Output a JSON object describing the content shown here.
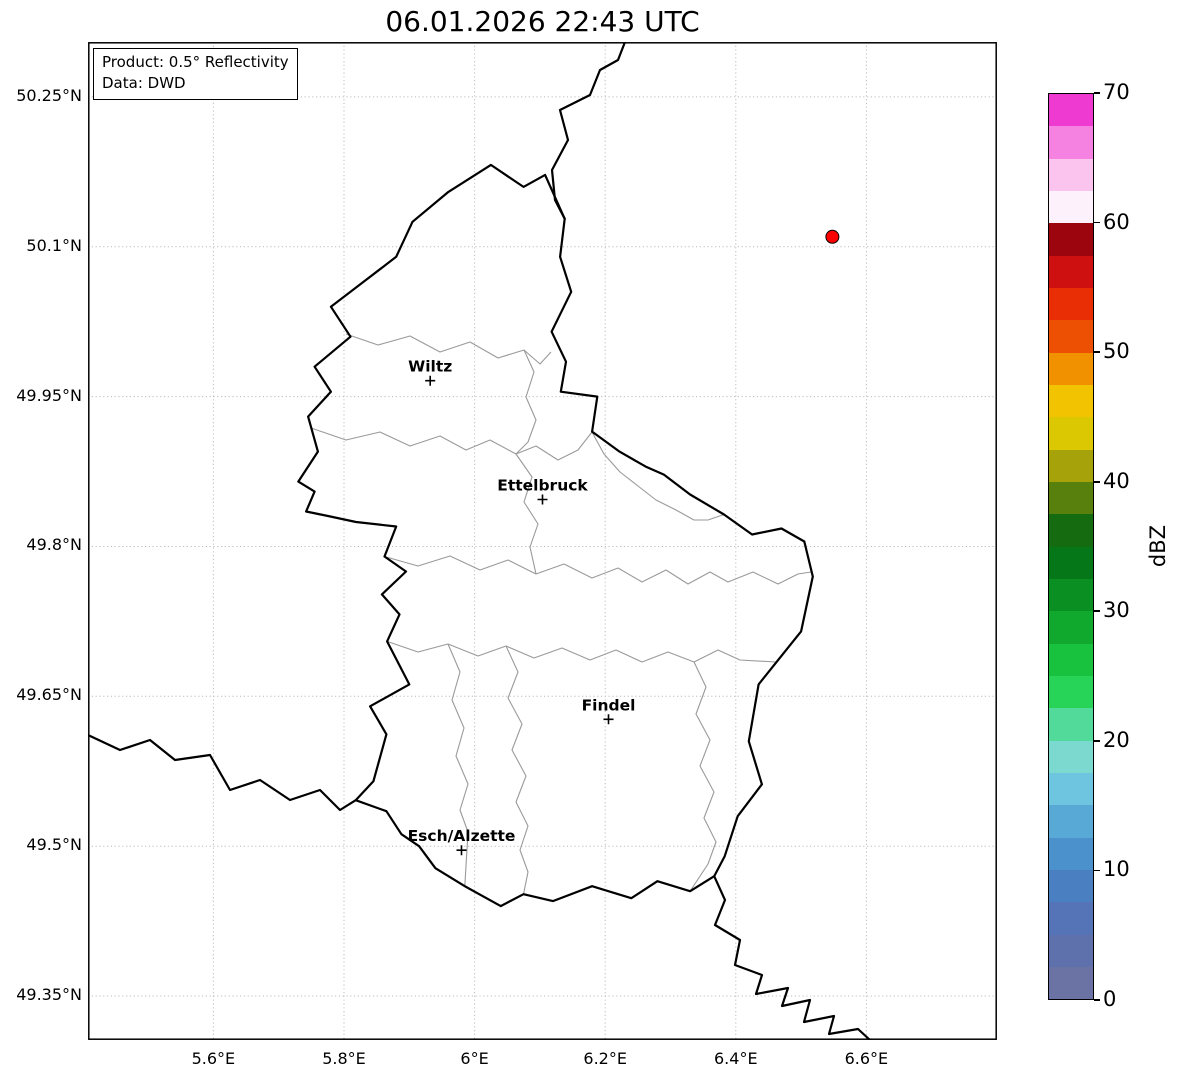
{
  "title": "06.01.2026 22:43 UTC",
  "info_box": {
    "line1": "Product: 0.5° Reflectivity",
    "line2": "Data: DWD"
  },
  "chart_data": {
    "type": "map",
    "title": "06.01.2026 22:43 UTC",
    "region": "Luxembourg and surrounding borders",
    "grid": true,
    "extent": {
      "lon_min": 5.408,
      "lon_max": 6.8,
      "lat_min": 49.306,
      "lat_max": 50.305
    },
    "lat_ticks": [
      {
        "value": 50.25,
        "label": "50.25°N"
      },
      {
        "value": 50.1,
        "label": "50.1°N"
      },
      {
        "value": 49.95,
        "label": "49.95°N"
      },
      {
        "value": 49.8,
        "label": "49.8°N"
      },
      {
        "value": 49.65,
        "label": "49.65°N"
      },
      {
        "value": 49.5,
        "label": "49.5°N"
      },
      {
        "value": 49.35,
        "label": "49.35°N"
      }
    ],
    "lon_ticks": [
      {
        "value": 5.6,
        "label": "5.6°E"
      },
      {
        "value": 5.8,
        "label": "5.8°E"
      },
      {
        "value": 6.0,
        "label": "6°E"
      },
      {
        "value": 6.2,
        "label": "6.2°E"
      },
      {
        "value": 6.4,
        "label": "6.4°E"
      },
      {
        "value": 6.6,
        "label": "6.6°E"
      }
    ],
    "cities": [
      {
        "name": "Wiltz",
        "lon": 5.932,
        "lat": 49.966
      },
      {
        "name": "Ettelbruck",
        "lon": 6.104,
        "lat": 49.847
      },
      {
        "name": "Findel",
        "lon": 6.205,
        "lat": 49.627
      },
      {
        "name": "Esch/Alzette",
        "lon": 5.98,
        "lat": 49.496
      }
    ],
    "radar_marker": {
      "lon": 6.548,
      "lat": 50.11,
      "color": "#ff0000",
      "edge_color": "#000000"
    },
    "colorbar": {
      "label": "dBZ",
      "min": 0,
      "max": 70,
      "ticks": [
        0,
        10,
        20,
        30,
        40,
        50,
        60,
        70
      ],
      "segment_dbz": 2.5,
      "colors_bottom_to_top": [
        "#6b73a5",
        "#5f71ad",
        "#5474b7",
        "#4a7fc1",
        "#4b92cc",
        "#59a9d7",
        "#6ec5e0",
        "#7cd9d0",
        "#52da9b",
        "#27d457",
        "#19c23e",
        "#10a92e",
        "#0a9022",
        "#057719",
        "#156c10",
        "#57800d",
        "#a5a309",
        "#dcc703",
        "#f2c300",
        "#f29100",
        "#ee5003",
        "#e92e06",
        "#cf1010",
        "#9c050e",
        "#fdf1fb",
        "#fac4ef",
        "#f581e0",
        "#ee3ad1"
      ]
    }
  }
}
